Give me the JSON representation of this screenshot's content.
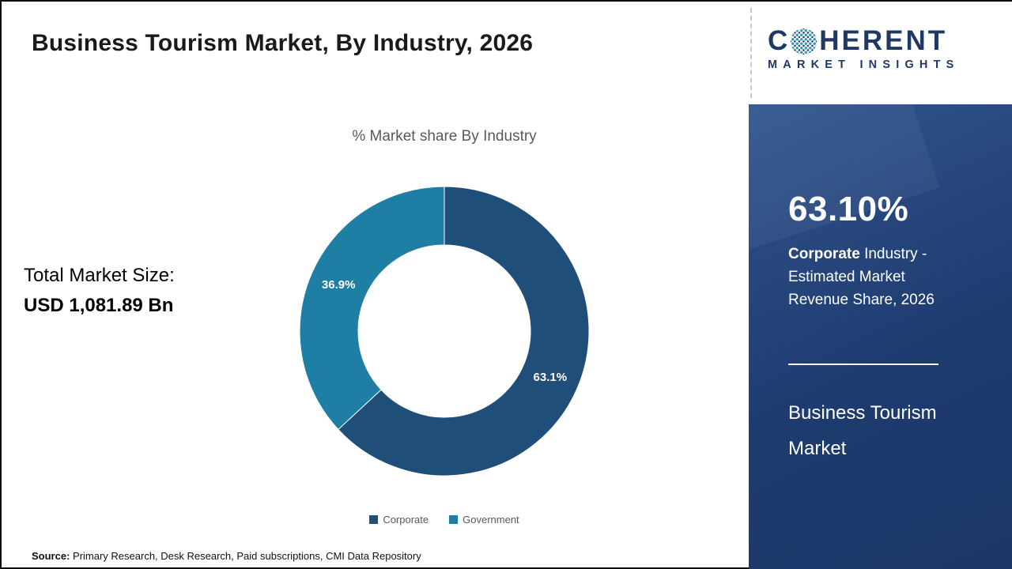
{
  "header": {
    "title": "Business Tourism Market, By Industry, 2026"
  },
  "logo": {
    "part1": "C",
    "part2": "HERENT",
    "subtitle": "MARKET INSIGHTS",
    "navy": "#1f3864",
    "teal": "#2e9ab0"
  },
  "chart_data": {
    "type": "pie",
    "donut": true,
    "title": "% Market share By Industry",
    "categories": [
      "Corporate",
      "Government"
    ],
    "values": [
      63.1,
      36.9
    ],
    "labels": [
      "63.1%",
      "36.9%"
    ],
    "colors": [
      "#1f4e79",
      "#1f7ea4"
    ],
    "legend_position": "bottom"
  },
  "market_size": {
    "label": "Total Market Size:",
    "value": "USD 1,081.89 Bn"
  },
  "sidebar": {
    "highlight_value": "63.10%",
    "highlight_bold": "Corporate",
    "highlight_rest": " Industry - Estimated Market Revenue Share, 2026",
    "product": "Business Tourism Market",
    "background": "#1f3c70"
  },
  "footer": {
    "source_label": "Source:",
    "source_text": " Primary Research, Desk Research, Paid subscriptions, CMI Data Repository"
  }
}
